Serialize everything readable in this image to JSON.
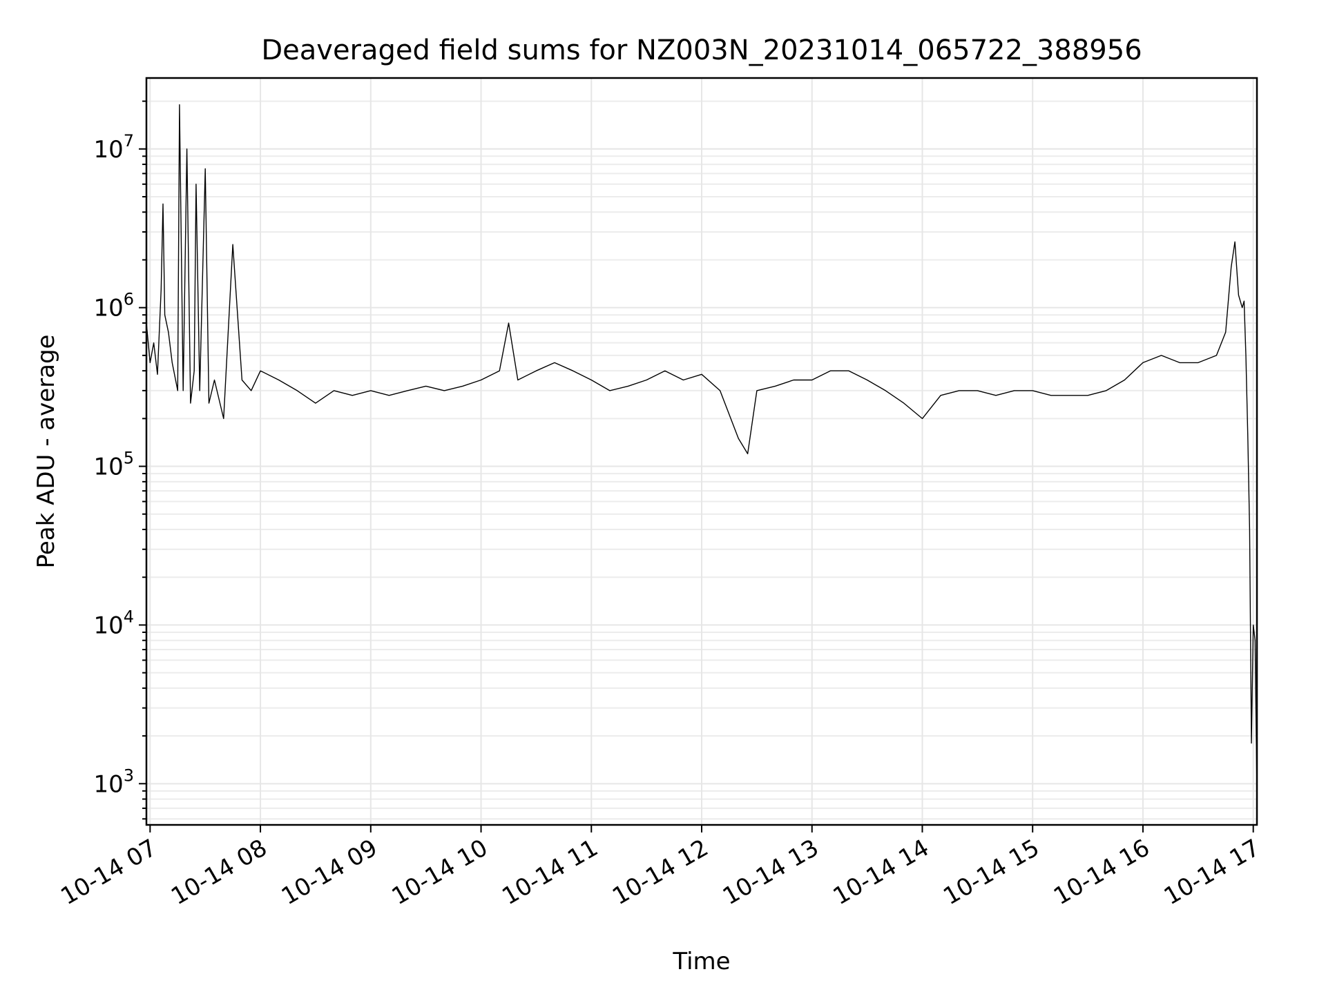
{
  "chart_data": {
    "type": "line",
    "title": "Deaveraged field sums for NZ003N_20231014_065722_388956",
    "xlabel": "Time",
    "ylabel": "Peak ADU - average",
    "yscale": "log",
    "ylim": [
      550,
      28000000
    ],
    "xlim": [
      "2023-10-14 06:58",
      "2023-10-14 17:02"
    ],
    "grid": true,
    "line_color": "#000000",
    "x_tick_labels": [
      "10-14 07",
      "10-14 08",
      "10-14 09",
      "10-14 10",
      "10-14 11",
      "10-14 12",
      "10-14 13",
      "10-14 14",
      "10-14 15",
      "10-14 16",
      "10-14 17"
    ],
    "x_tick_values": [
      "2023-10-14 07:00",
      "2023-10-14 08:00",
      "2023-10-14 09:00",
      "2023-10-14 10:00",
      "2023-10-14 11:00",
      "2023-10-14 12:00",
      "2023-10-14 13:00",
      "2023-10-14 14:00",
      "2023-10-14 15:00",
      "2023-10-14 16:00",
      "2023-10-14 17:00"
    ],
    "y_tick_values": [
      1000,
      10000,
      100000,
      1000000,
      10000000
    ],
    "y_tick_labels": [
      {
        "base": "10",
        "exp": "3"
      },
      {
        "base": "10",
        "exp": "4"
      },
      {
        "base": "10",
        "exp": "5"
      },
      {
        "base": "10",
        "exp": "6"
      },
      {
        "base": "10",
        "exp": "7"
      }
    ],
    "series": [
      {
        "x": [
          "2023-10-14 06:58",
          "2023-10-14 07:00",
          "2023-10-14 07:02",
          "2023-10-14 07:04",
          "2023-10-14 07:06",
          "2023-10-14 07:07",
          "2023-10-14 07:08",
          "2023-10-14 07:10",
          "2023-10-14 07:12",
          "2023-10-14 07:15",
          "2023-10-14 07:16",
          "2023-10-14 07:18",
          "2023-10-14 07:20",
          "2023-10-14 07:22",
          "2023-10-14 07:24",
          "2023-10-14 07:25",
          "2023-10-14 07:27",
          "2023-10-14 07:30",
          "2023-10-14 07:32",
          "2023-10-14 07:35",
          "2023-10-14 07:40",
          "2023-10-14 07:45",
          "2023-10-14 07:50",
          "2023-10-14 07:55",
          "2023-10-14 08:00",
          "2023-10-14 08:10",
          "2023-10-14 08:20",
          "2023-10-14 08:30",
          "2023-10-14 08:40",
          "2023-10-14 08:50",
          "2023-10-14 09:00",
          "2023-10-14 09:10",
          "2023-10-14 09:20",
          "2023-10-14 09:30",
          "2023-10-14 09:40",
          "2023-10-14 09:50",
          "2023-10-14 10:00",
          "2023-10-14 10:10",
          "2023-10-14 10:15",
          "2023-10-14 10:20",
          "2023-10-14 10:30",
          "2023-10-14 10:40",
          "2023-10-14 10:50",
          "2023-10-14 11:00",
          "2023-10-14 11:10",
          "2023-10-14 11:20",
          "2023-10-14 11:30",
          "2023-10-14 11:40",
          "2023-10-14 11:50",
          "2023-10-14 12:00",
          "2023-10-14 12:10",
          "2023-10-14 12:20",
          "2023-10-14 12:25",
          "2023-10-14 12:30",
          "2023-10-14 12:40",
          "2023-10-14 12:50",
          "2023-10-14 13:00",
          "2023-10-14 13:10",
          "2023-10-14 13:20",
          "2023-10-14 13:30",
          "2023-10-14 13:40",
          "2023-10-14 13:50",
          "2023-10-14 14:00",
          "2023-10-14 14:10",
          "2023-10-14 14:20",
          "2023-10-14 14:30",
          "2023-10-14 14:40",
          "2023-10-14 14:50",
          "2023-10-14 15:00",
          "2023-10-14 15:10",
          "2023-10-14 15:20",
          "2023-10-14 15:30",
          "2023-10-14 15:40",
          "2023-10-14 15:50",
          "2023-10-14 16:00",
          "2023-10-14 16:10",
          "2023-10-14 16:20",
          "2023-10-14 16:30",
          "2023-10-14 16:40",
          "2023-10-14 16:45",
          "2023-10-14 16:48",
          "2023-10-14 16:50",
          "2023-10-14 16:52",
          "2023-10-14 16:54",
          "2023-10-14 16:55",
          "2023-10-14 16:56",
          "2023-10-14 16:57",
          "2023-10-14 16:58",
          "2023-10-14 16:59",
          "2023-10-14 17:00",
          "2023-10-14 17:01",
          "2023-10-14 17:02"
        ],
        "y": [
          800000,
          450000,
          600000,
          380000,
          1300000,
          4500000,
          900000,
          700000,
          450000,
          300000,
          19000000,
          300000,
          10000000,
          250000,
          400000,
          6000000,
          300000,
          7500000,
          250000,
          350000,
          200000,
          2500000,
          350000,
          300000,
          400000,
          350000,
          300000,
          250000,
          300000,
          280000,
          300000,
          280000,
          300000,
          320000,
          300000,
          320000,
          350000,
          400000,
          800000,
          350000,
          400000,
          450000,
          400000,
          350000,
          300000,
          320000,
          350000,
          400000,
          350000,
          380000,
          300000,
          150000,
          120000,
          300000,
          320000,
          350000,
          350000,
          400000,
          400000,
          350000,
          300000,
          250000,
          200000,
          280000,
          300000,
          300000,
          280000,
          300000,
          300000,
          280000,
          280000,
          280000,
          300000,
          350000,
          450000,
          500000,
          450000,
          450000,
          500000,
          700000,
          1800000,
          2600000,
          1200000,
          1000000,
          1100000,
          500000,
          160000,
          40000,
          1800,
          10000,
          8000,
          900
        ]
      }
    ]
  }
}
